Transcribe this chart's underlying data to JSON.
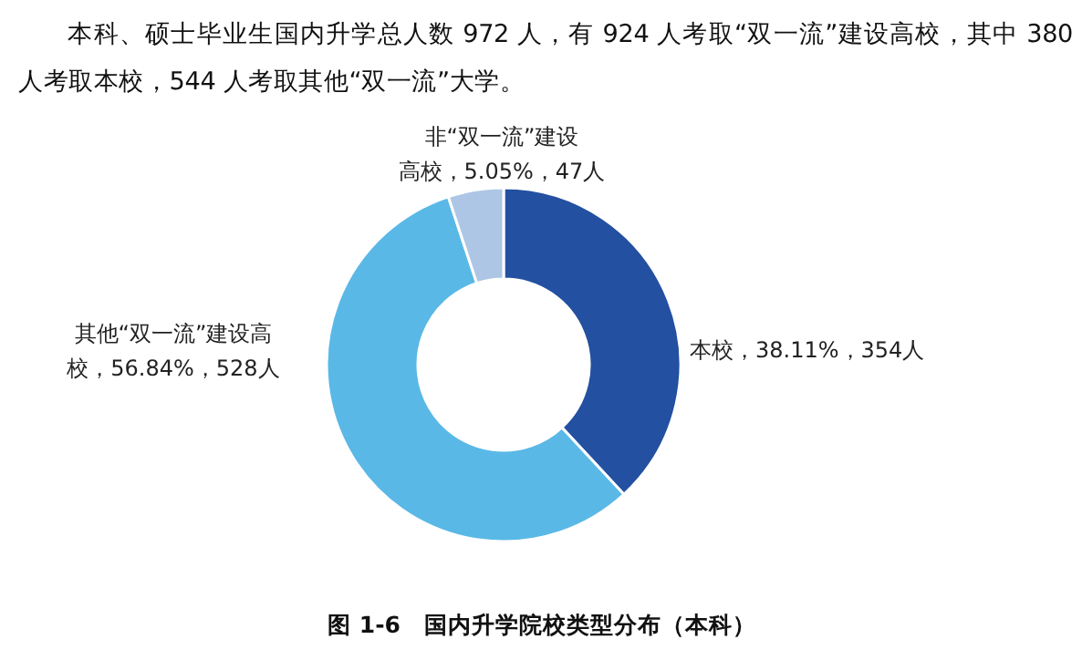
{
  "chart_data": {
    "type": "donut",
    "title": "图 1-6　国内升学院校类型分布（本科）",
    "annotations": [
      "本科、硕士毕业生国内升学总人数 972 人，有 924 人考取“双一流”建设高校，其中 380 人考取本校，544 人考取其他“双一流”大学。"
    ],
    "categories": [
      "本校",
      "其他“双一流”建设高校",
      "非“双一流”建设高校"
    ],
    "values": [
      354,
      528,
      47
    ],
    "colors": [
      "#2350a0",
      "#5ab8e6",
      "#adc6e6"
    ],
    "value_labels": [
      "38.11%，354人",
      "56.84%，528人",
      "5.05%，47人"
    ]
  }
}
